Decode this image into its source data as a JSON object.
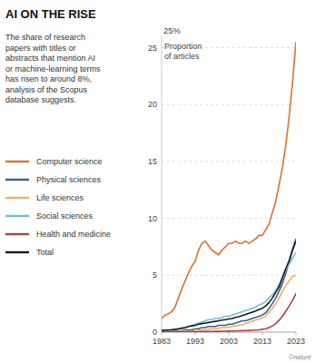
{
  "chart_data": {
    "type": "line",
    "title": "AI ON THE RISE",
    "subtitle": "The share of research\npapers with titles or\nabstracts that mention AI\nor machine-learning terms\nhas risen to around 8%,\nanalysis of the Scopus\ndatabase suggests.",
    "ylabel": "Proportion\nof articles",
    "annotations": [
      "25%",
      "©nature"
    ],
    "x": [
      1983,
      1984,
      1985,
      1986,
      1987,
      1988,
      1989,
      1990,
      1991,
      1992,
      1993,
      1994,
      1995,
      1996,
      1997,
      1998,
      1999,
      2000,
      2001,
      2002,
      2003,
      2004,
      2005,
      2006,
      2007,
      2008,
      2009,
      2010,
      2011,
      2012,
      2013,
      2014,
      2015,
      2016,
      2017,
      2018,
      2019,
      2020,
      2021,
      2022,
      2023
    ],
    "xlim": [
      1983,
      2023
    ],
    "xticks": [
      1983,
      1993,
      2003,
      2013,
      2023
    ],
    "ylim": [
      0,
      26
    ],
    "yticks": [
      0,
      5,
      10,
      15,
      20,
      25
    ],
    "grid": true,
    "legend": "left",
    "series": [
      {
        "name": "Computer science",
        "color": "#E07030",
        "values": [
          1.2,
          1.5,
          1.6,
          1.8,
          2.2,
          3.0,
          3.8,
          4.5,
          5.2,
          5.8,
          6.2,
          7.2,
          7.8,
          8.0,
          7.6,
          7.2,
          7.0,
          6.8,
          7.2,
          7.5,
          7.8,
          7.8,
          8.0,
          7.8,
          7.8,
          8.0,
          7.8,
          8.0,
          8.2,
          8.5,
          8.5,
          9.0,
          9.5,
          10.5,
          11.5,
          13.0,
          14.5,
          16.5,
          19.0,
          22.0,
          25.5
        ]
      },
      {
        "name": "Physical sciences",
        "color": "#3060A0",
        "values": [
          0.1,
          0.1,
          0.1,
          0.1,
          0.1,
          0.1,
          0.1,
          0.2,
          0.2,
          0.2,
          0.3,
          0.3,
          0.4,
          0.4,
          0.5,
          0.5,
          0.5,
          0.6,
          0.6,
          0.6,
          0.7,
          0.7,
          0.8,
          0.9,
          1.0,
          1.0,
          1.1,
          1.2,
          1.3,
          1.4,
          1.5,
          1.7,
          2.1,
          2.5,
          3.0,
          3.6,
          4.3,
          5.2,
          6.2,
          7.3,
          8.2
        ]
      },
      {
        "name": "Life sciences",
        "color": "#F0B060",
        "values": [
          0.05,
          0.05,
          0.05,
          0.05,
          0.05,
          0.05,
          0.05,
          0.1,
          0.1,
          0.1,
          0.1,
          0.15,
          0.2,
          0.2,
          0.25,
          0.3,
          0.3,
          0.35,
          0.4,
          0.4,
          0.45,
          0.5,
          0.55,
          0.6,
          0.65,
          0.75,
          0.85,
          0.95,
          1.05,
          1.15,
          1.25,
          1.45,
          1.75,
          2.1,
          2.5,
          3.0,
          3.6,
          4.1,
          4.5,
          4.9,
          5.0
        ]
      },
      {
        "name": "Social sciences",
        "color": "#70C0D8",
        "values": [
          0.1,
          0.15,
          0.15,
          0.2,
          0.2,
          0.25,
          0.3,
          0.4,
          0.5,
          0.6,
          0.7,
          0.8,
          0.9,
          1.0,
          1.1,
          1.1,
          1.2,
          1.2,
          1.3,
          1.4,
          1.4,
          1.5,
          1.6,
          1.7,
          1.8,
          1.9,
          2.0,
          2.1,
          2.2,
          2.4,
          2.5,
          2.7,
          3.0,
          3.3,
          3.7,
          4.2,
          4.8,
          5.5,
          6.0,
          6.5,
          7.0
        ]
      },
      {
        "name": "Health and medicine",
        "color": "#B04040",
        "values": [
          0.02,
          0.02,
          0.02,
          0.02,
          0.02,
          0.02,
          0.02,
          0.02,
          0.03,
          0.03,
          0.04,
          0.04,
          0.05,
          0.05,
          0.06,
          0.06,
          0.07,
          0.07,
          0.08,
          0.08,
          0.09,
          0.1,
          0.1,
          0.12,
          0.13,
          0.14,
          0.15,
          0.16,
          0.18,
          0.2,
          0.25,
          0.3,
          0.4,
          0.55,
          0.75,
          1.05,
          1.4,
          1.85,
          2.3,
          2.8,
          3.4
        ]
      },
      {
        "name": "Total",
        "color": "#1a1a1a",
        "values": [
          0.15,
          0.18,
          0.2,
          0.22,
          0.25,
          0.3,
          0.35,
          0.4,
          0.5,
          0.55,
          0.6,
          0.7,
          0.75,
          0.8,
          0.85,
          0.9,
          0.95,
          1.0,
          1.05,
          1.1,
          1.15,
          1.2,
          1.3,
          1.35,
          1.45,
          1.55,
          1.65,
          1.75,
          1.85,
          2.0,
          2.1,
          2.3,
          2.6,
          3.0,
          3.5,
          4.0,
          4.8,
          5.6,
          6.3,
          7.2,
          8.0
        ]
      }
    ]
  }
}
